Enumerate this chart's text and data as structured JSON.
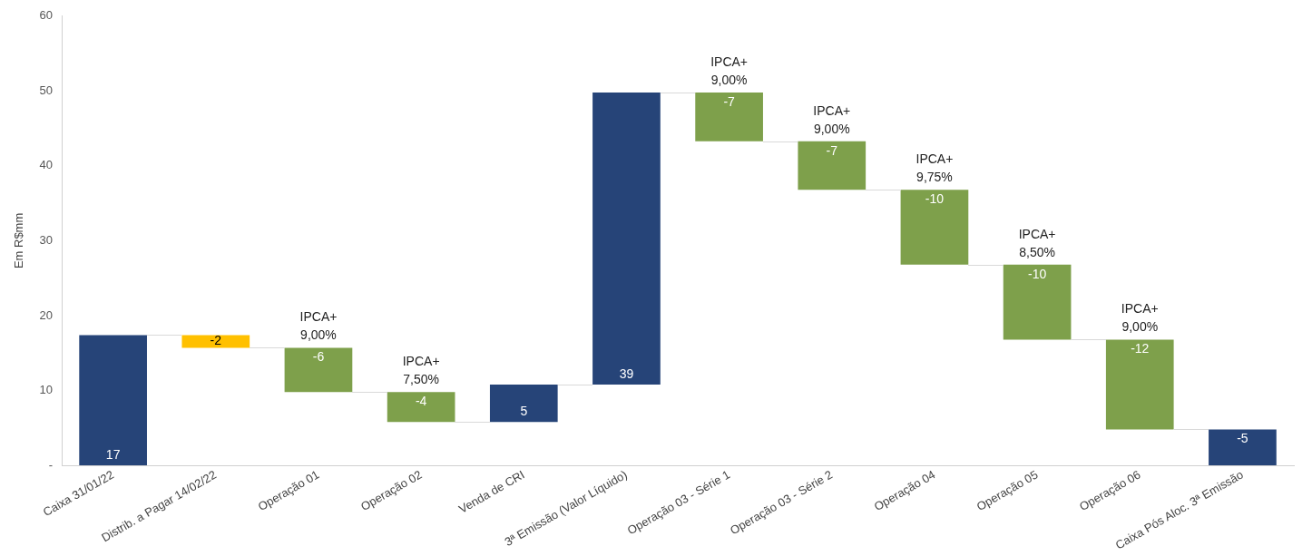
{
  "chart_data": {
    "type": "bar",
    "ylabel": "Em R$mm",
    "categories": [
      "Caixa 31/01/22",
      "Distrib. a Pagar 14/02/22",
      "Operação 01",
      "Operação 02",
      "Venda de CRI",
      "3ª Emissão (Valor Líquido)",
      "Operação 03 - Série 1",
      "Operação 03 - Série 2",
      "Operação 04",
      "Operação 05",
      "Operação 06",
      "Caixa Pós Aloc. 3ª Emissão"
    ],
    "values": [
      17.4,
      -1.7,
      -5.9,
      -4,
      5,
      39,
      -6.5,
      -6.5,
      -10,
      -10,
      -12,
      -4.8
    ],
    "base": [
      0,
      17.4,
      15.7,
      9.8,
      5.8,
      10.8,
      49.8,
      43.3,
      36.8,
      26.8,
      16.8,
      4.8
    ],
    "colors": [
      "#264478",
      "#ffc000",
      "#7ea04b",
      "#7ea04b",
      "#264478",
      "#264478",
      "#7ea04b",
      "#7ea04b",
      "#7ea04b",
      "#7ea04b",
      "#7ea04b",
      "#264478"
    ],
    "value_labels": [
      "17",
      "-2",
      "-6",
      "-4",
      "5",
      "39",
      "-7",
      "-7",
      "-10",
      "-10",
      "-12",
      "-5"
    ],
    "ylim": [
      0,
      60
    ],
    "yticks": [
      {
        "value": 0,
        "label": "-"
      },
      10,
      20,
      30,
      40,
      50,
      60
    ],
    "grid": false,
    "legend": false,
    "annotations": [
      {
        "text": "IPCA+\n9,00%",
        "x": "Operação 01",
        "y": 15.7
      },
      {
        "text": "IPCA+\n7,50%",
        "x": "Operação 02",
        "y": 9.8
      },
      {
        "text": "IPCA+\n9,00%",
        "x": "Operação 03 - Série 1",
        "y": 49.8
      },
      {
        "text": "IPCA+\n9,00%",
        "x": "Operação 03 - Série 2",
        "y": 43.3
      },
      {
        "text": "IPCA+\n9,75%",
        "x": "Operação 04",
        "y": 36.8
      },
      {
        "text": "IPCA+\n8,50%",
        "x": "Operação 05",
        "y": 26.8
      },
      {
        "text": "IPCA+\n9,00%",
        "x": "Operação 06",
        "y": 16.8
      }
    ]
  }
}
